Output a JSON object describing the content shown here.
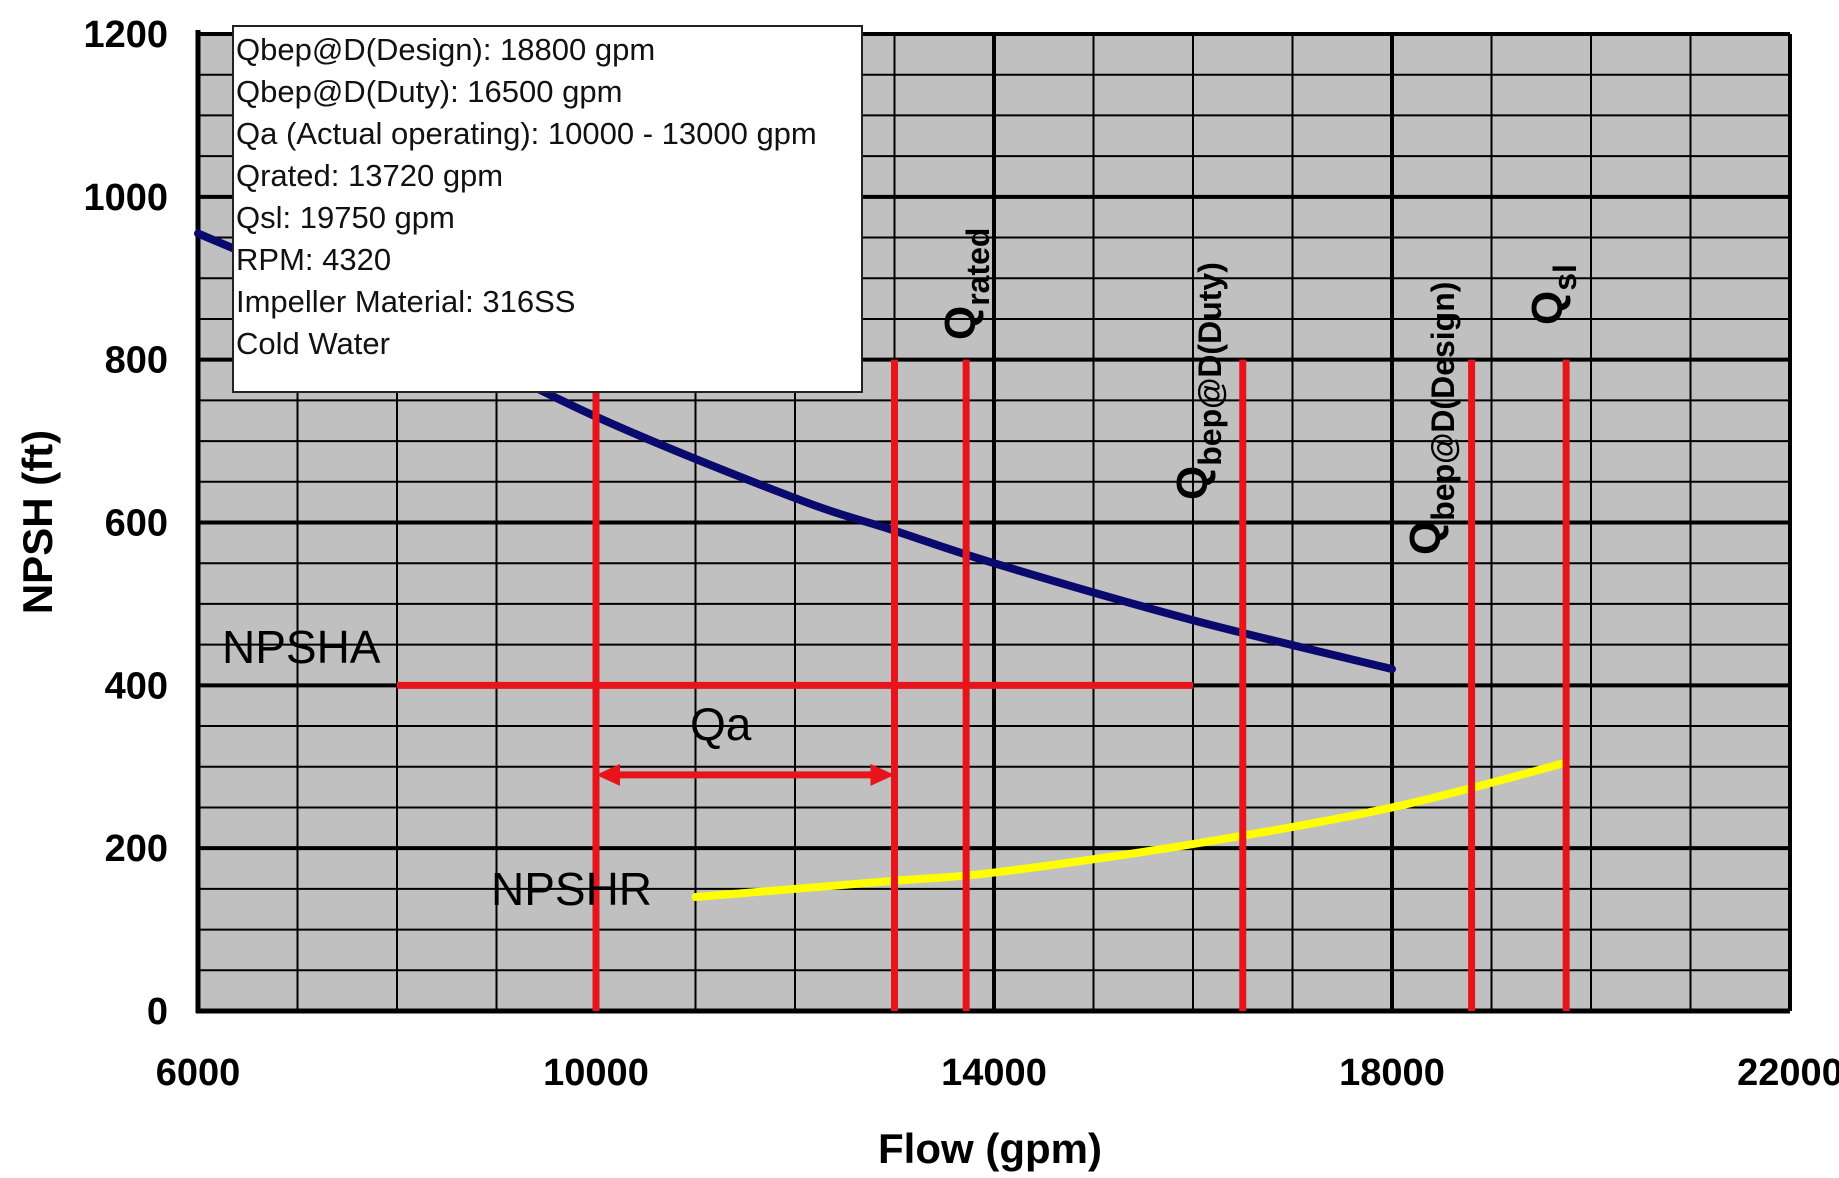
{
  "chart_data": {
    "type": "line",
    "xlabel": "Flow  (gpm)",
    "ylabel": "NPSH  (ft)",
    "xlim": [
      6000,
      22000
    ],
    "ylim": [
      0,
      1200
    ],
    "x_ticks": [
      "6000",
      "10000",
      "14000",
      "18000",
      "22000"
    ],
    "y_ticks": [
      "0",
      "200",
      "400",
      "600",
      "800",
      "1000",
      "1200"
    ],
    "grid": true,
    "plot_background": "#c0c0c0",
    "series": [
      {
        "name": "NPSHA",
        "color": "#0a0a6e",
        "points": [
          [
            6000,
            955
          ],
          [
            8000,
            850
          ],
          [
            10000,
            730
          ],
          [
            12000,
            630
          ],
          [
            13000,
            590
          ],
          [
            14000,
            550
          ],
          [
            16000,
            480
          ],
          [
            18000,
            420
          ]
        ]
      },
      {
        "name": "NPSHR",
        "color": "#ffff00",
        "points": [
          [
            11000,
            140
          ],
          [
            13000,
            160
          ],
          [
            14000,
            170
          ],
          [
            16000,
            205
          ],
          [
            18000,
            250
          ],
          [
            19750,
            305
          ]
        ]
      }
    ],
    "npsha_line": {
      "value": 400,
      "x_from": 8000,
      "x_to": 16000,
      "color": "#e8141b"
    },
    "vertical_markers": [
      {
        "x": 10000,
        "top": 800,
        "label": ""
      },
      {
        "x": 13000,
        "top": 800,
        "label": ""
      },
      {
        "x": 13720,
        "top": 800,
        "label_main": "Q",
        "label_sub": "rated"
      },
      {
        "x": 16500,
        "top": 800,
        "label_main": "Q",
        "label_sub": "bep@D(Duty)"
      },
      {
        "x": 18800,
        "top": 800,
        "label_main": "Q",
        "label_sub": "bep@D(Design)"
      },
      {
        "x": 19750,
        "top": 800,
        "label_main": "Q",
        "label_sub": "sl"
      }
    ],
    "qa_range": {
      "from": 10000,
      "to": 13000,
      "y": 290,
      "label": "Qa"
    },
    "annotations": {
      "npsha": "NPSHA",
      "npshr": "NPSHR"
    },
    "info_box": [
      "Qbep@D(Design): 18800 gpm",
      "Qbep@D(Duty): 16500 gpm",
      "Qa (Actual operating): 10000 - 13000 gpm",
      "Qrated: 13720 gpm",
      "Qsl: 19750 gpm",
      "RPM: 4320",
      "Impeller Material: 316SS",
      "Cold Water"
    ],
    "marker_color": "#e8141b"
  }
}
